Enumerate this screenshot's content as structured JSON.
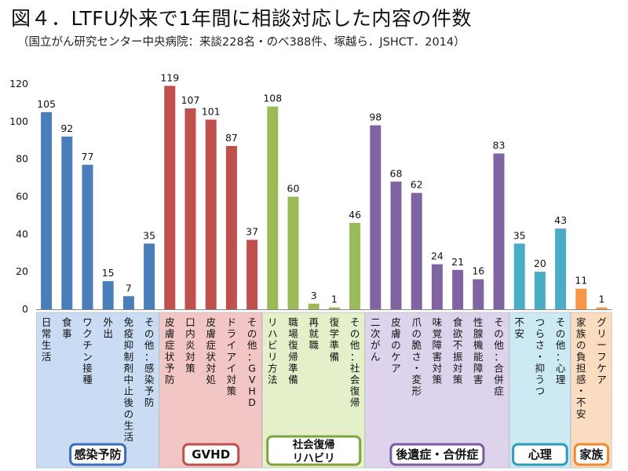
{
  "title": "図４．LTFU外来で1年間に相談対応した内容の件数",
  "subtitle": "（国立がん研究センター中央病院：来談228名・のべ388件、塚越ら．JSHCT．2014）",
  "chart_data": {
    "type": "bar",
    "ylim": [
      0,
      120
    ],
    "yticks": [
      0,
      20,
      40,
      60,
      80,
      100,
      120
    ],
    "grid": false,
    "groups": [
      {
        "name": "感染予防",
        "color": "#4a7ebb",
        "bg": "#c9dcf3",
        "border": "#3a6db5",
        "categories": [
          "日常生活",
          "食事",
          "ワクチン接種",
          "外出",
          "免疫抑制剤中止後の生活",
          "その他：感染予防"
        ],
        "values": [
          105,
          92,
          77,
          15,
          7,
          35
        ]
      },
      {
        "name": "GVHD",
        "color": "#c0504d",
        "bg": "#f2c6c5",
        "border": "#c0504d",
        "categories": [
          "皮膚症状予防",
          "口内炎対策",
          "皮膚症状対処",
          "ドライアイ対策",
          "その他：GVHD"
        ],
        "values": [
          119,
          107,
          101,
          87,
          37
        ]
      },
      {
        "name": "社会復帰\nリハビリ",
        "color": "#9bbb59",
        "bg": "#e3f0c9",
        "border": "#7ea33e",
        "categories": [
          "リハビリ方法",
          "職場復帰準備",
          "再就職",
          "復学準備",
          "その他：社会復帰"
        ],
        "values": [
          108,
          60,
          3,
          1,
          46
        ]
      },
      {
        "name": "後遺症・合併症",
        "color": "#8064a2",
        "bg": "#ddd3ec",
        "border": "#7a5ca0",
        "categories": [
          "二次がん",
          "皮膚のケア",
          "爪の脆さ・変形",
          "味覚障害対策",
          "食欲不振対策",
          "性腺機能障害",
          "その他：合併症"
        ],
        "values": [
          98,
          68,
          62,
          24,
          21,
          16,
          83
        ]
      },
      {
        "name": "心理",
        "color": "#4bacc6",
        "bg": "#cbeaf4",
        "border": "#2e9bbb",
        "categories": [
          "不安",
          "つらさ・抑うつ",
          "その他：心理"
        ],
        "values": [
          35,
          20,
          43
        ]
      },
      {
        "name": "家族",
        "color": "#f79646",
        "bg": "#fbdcc0",
        "border": "#ef8a2c",
        "categories": [
          "家族の負担感・不安",
          "グリーフケア"
        ],
        "values": [
          11,
          1
        ]
      }
    ]
  }
}
